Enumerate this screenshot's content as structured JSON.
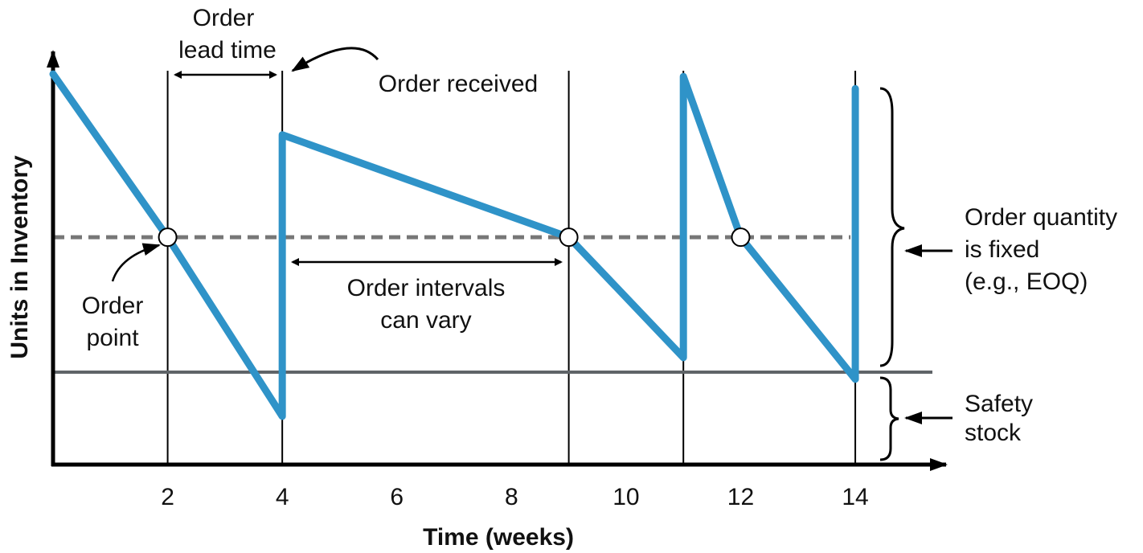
{
  "chart_data": {
    "type": "line",
    "xlabel": "Time (weeks)",
    "ylabel": "Units in Inventory",
    "x": [
      0,
      2,
      4,
      4,
      9,
      11,
      11,
      12,
      14,
      14
    ],
    "values": [
      93.8,
      54.6,
      11.6,
      79.2,
      54.6,
      25.7,
      93.2,
      54.6,
      20.5,
      90.3
    ],
    "color": "#2f93c8",
    "xlim": [
      0,
      15.5
    ],
    "ylim": [
      0,
      100
    ],
    "xticks": [
      2,
      4,
      6,
      8,
      10,
      12,
      14
    ],
    "order_events": [
      2,
      4,
      9,
      11,
      14
    ],
    "order_point": 54.6,
    "safety_stock": 22.2,
    "annotations": {
      "lead_time": [
        "Order",
        "lead time"
      ],
      "received": [
        "Order received"
      ],
      "order_point": [
        "Order",
        "point"
      ],
      "intervals": [
        "Order intervals",
        "can vary"
      ],
      "quantity": [
        "Order quantity",
        "is fixed",
        "(e.g., EOQ)"
      ],
      "safety": [
        "Safety",
        "stock"
      ]
    }
  }
}
